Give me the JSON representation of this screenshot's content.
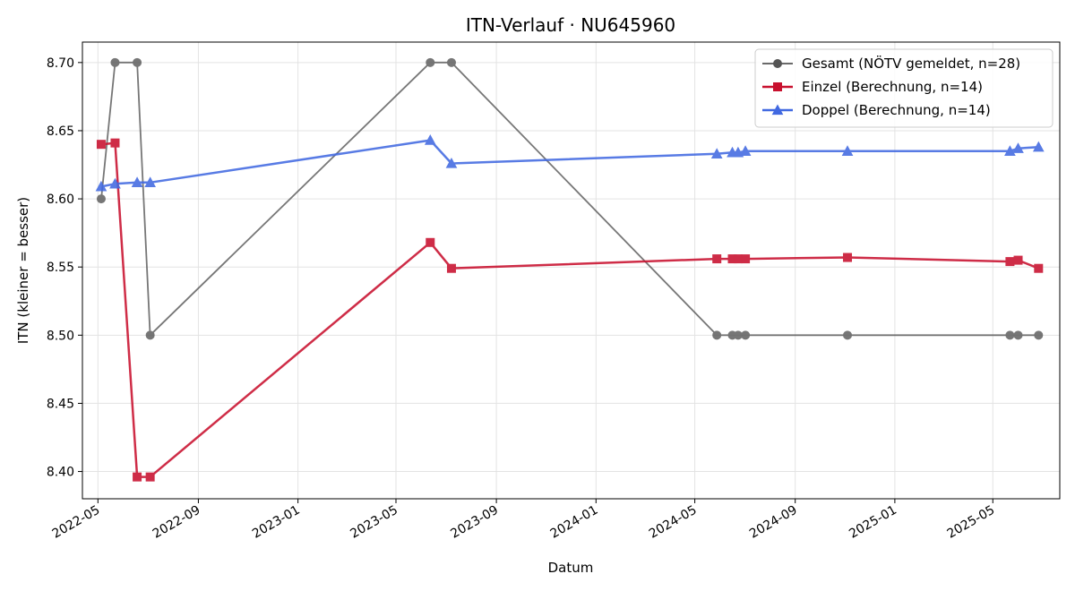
{
  "chart_data": {
    "type": "line",
    "title": "ITN-Verlauf · NU645960",
    "xlabel": "Datum",
    "ylabel": "ITN  (kleiner = besser)",
    "x_axis": {
      "kind": "date",
      "range": [
        "2022-04-12",
        "2025-07-22"
      ],
      "ticks": [
        "2022-05",
        "2022-09",
        "2023-01",
        "2023-05",
        "2023-09",
        "2024-01",
        "2024-05",
        "2024-09",
        "2025-01",
        "2025-05"
      ]
    },
    "y_axis": {
      "range": [
        8.38,
        8.715
      ],
      "ticks": [
        "8.40",
        "8.45",
        "8.50",
        "8.55",
        "8.60",
        "8.65",
        "8.70"
      ]
    },
    "grid": true,
    "legend_position": "top-right",
    "series": [
      {
        "name": "Gesamt (NÖTV gemeldet, n=28)",
        "color": "#555555",
        "marker": "circle",
        "points": [
          {
            "x": "2022-05-05",
            "y": 8.6
          },
          {
            "x": "2022-05-22",
            "y": 8.7
          },
          {
            "x": "2022-06-18",
            "y": 8.7
          },
          {
            "x": "2022-07-04",
            "y": 8.5
          },
          {
            "x": "2023-06-12",
            "y": 8.7
          },
          {
            "x": "2023-07-08",
            "y": 8.7
          },
          {
            "x": "2024-05-28",
            "y": 8.5
          },
          {
            "x": "2024-06-16",
            "y": 8.5
          },
          {
            "x": "2024-06-23",
            "y": 8.5
          },
          {
            "x": "2024-07-02",
            "y": 8.5
          },
          {
            "x": "2024-11-04",
            "y": 8.5
          },
          {
            "x": "2025-05-22",
            "y": 8.5
          },
          {
            "x": "2025-06-01",
            "y": 8.5
          },
          {
            "x": "2025-06-26",
            "y": 8.5
          }
        ]
      },
      {
        "name": "Einzel (Berechnung, n=14)",
        "color": "#c8102e",
        "marker": "square",
        "points": [
          {
            "x": "2022-05-05",
            "y": 8.64
          },
          {
            "x": "2022-05-22",
            "y": 8.641
          },
          {
            "x": "2022-06-18",
            "y": 8.396
          },
          {
            "x": "2022-07-04",
            "y": 8.396
          },
          {
            "x": "2023-06-12",
            "y": 8.568
          },
          {
            "x": "2023-07-08",
            "y": 8.549
          },
          {
            "x": "2024-05-28",
            "y": 8.556
          },
          {
            "x": "2024-06-16",
            "y": 8.556
          },
          {
            "x": "2024-06-23",
            "y": 8.556
          },
          {
            "x": "2024-07-02",
            "y": 8.556
          },
          {
            "x": "2024-11-04",
            "y": 8.557
          },
          {
            "x": "2025-05-22",
            "y": 8.554
          },
          {
            "x": "2025-06-01",
            "y": 8.555
          },
          {
            "x": "2025-06-26",
            "y": 8.549
          }
        ]
      },
      {
        "name": "Doppel (Berechnung, n=14)",
        "color": "#4169e1",
        "marker": "triangle",
        "points": [
          {
            "x": "2022-05-05",
            "y": 8.609
          },
          {
            "x": "2022-05-22",
            "y": 8.611
          },
          {
            "x": "2022-06-18",
            "y": 8.612
          },
          {
            "x": "2022-07-04",
            "y": 8.612
          },
          {
            "x": "2023-06-12",
            "y": 8.643
          },
          {
            "x": "2023-07-08",
            "y": 8.626
          },
          {
            "x": "2024-05-28",
            "y": 8.633
          },
          {
            "x": "2024-06-16",
            "y": 8.634
          },
          {
            "x": "2024-06-23",
            "y": 8.634
          },
          {
            "x": "2024-07-02",
            "y": 8.635
          },
          {
            "x": "2024-11-04",
            "y": 8.635
          },
          {
            "x": "2025-05-22",
            "y": 8.635
          },
          {
            "x": "2025-06-01",
            "y": 8.637
          },
          {
            "x": "2025-06-26",
            "y": 8.638
          }
        ]
      }
    ]
  }
}
